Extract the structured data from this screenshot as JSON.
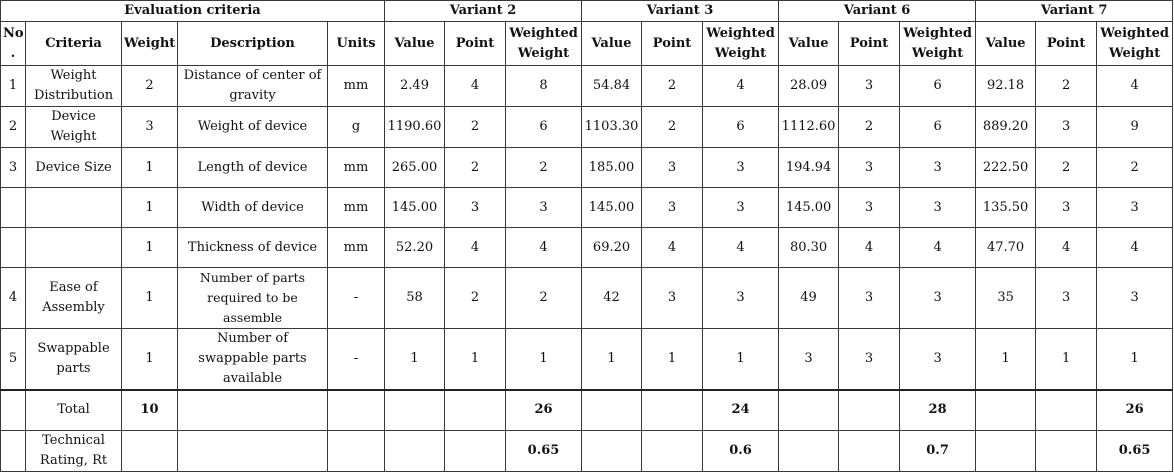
{
  "header": {
    "evaluation_criteria": "Evaluation criteria",
    "variants": [
      "Variant 2",
      "Variant 3",
      "Variant 6",
      "Variant 7"
    ]
  },
  "columns": {
    "no": "No .",
    "criteria": "Criteria",
    "weight": "Weight",
    "description": "Description",
    "units": "Units",
    "value": "Value",
    "point": "Point",
    "weighted_weight": "Weighted Weight"
  },
  "rows": [
    {
      "no": "1",
      "criteria": "Weight Distribution",
      "weight": "2",
      "description": "Distance of center of gravity",
      "units": "mm",
      "v": [
        [
          "2.49",
          "4",
          "8"
        ],
        [
          "54.84",
          "2",
          "4"
        ],
        [
          "28.09",
          "3",
          "6"
        ],
        [
          "92.18",
          "2",
          "4"
        ]
      ]
    },
    {
      "no": "2",
      "criteria": "Device Weight",
      "weight": "3",
      "description": "Weight of device",
      "units": "g",
      "v": [
        [
          "1190.60",
          "2",
          "6"
        ],
        [
          "1103.30",
          "2",
          "6"
        ],
        [
          "1112.60",
          "2",
          "6"
        ],
        [
          "889.20",
          "3",
          "9"
        ]
      ]
    },
    {
      "no": "3",
      "criteria": "Device Size",
      "weight": "1",
      "description": "Length of device",
      "units": "mm",
      "v": [
        [
          "265.00",
          "2",
          "2"
        ],
        [
          "185.00",
          "3",
          "3"
        ],
        [
          "194.94",
          "3",
          "3"
        ],
        [
          "222.50",
          "2",
          "2"
        ]
      ]
    },
    {
      "no": "",
      "criteria": "",
      "weight": "1",
      "description": "Width of device",
      "units": "mm",
      "v": [
        [
          "145.00",
          "3",
          "3"
        ],
        [
          "145.00",
          "3",
          "3"
        ],
        [
          "145.00",
          "3",
          "3"
        ],
        [
          "135.50",
          "3",
          "3"
        ]
      ]
    },
    {
      "no": "",
      "criteria": "",
      "weight": "1",
      "description": "Thickness of device",
      "units": "mm",
      "v": [
        [
          "52.20",
          "4",
          "4"
        ],
        [
          "69.20",
          "4",
          "4"
        ],
        [
          "80.30",
          "4",
          "4"
        ],
        [
          "47.70",
          "4",
          "4"
        ]
      ]
    },
    {
      "no": "4",
      "criteria": "Ease of Assembly",
      "weight": "1",
      "description": "Number of parts required to be assemble",
      "units": "-",
      "v": [
        [
          "58",
          "2",
          "2"
        ],
        [
          "42",
          "3",
          "3"
        ],
        [
          "49",
          "3",
          "3"
        ],
        [
          "35",
          "3",
          "3"
        ]
      ]
    },
    {
      "no": "5",
      "criteria": "Swappable parts",
      "weight": "1",
      "description": "Number of swappable parts available",
      "units": "-",
      "v": [
        [
          "1",
          "1",
          "1"
        ],
        [
          "1",
          "1",
          "1"
        ],
        [
          "3",
          "3",
          "3"
        ],
        [
          "1",
          "1",
          "1"
        ]
      ]
    }
  ],
  "total": {
    "label": "Total",
    "weight": "10",
    "weighted": [
      "26",
      "24",
      "28",
      "26"
    ]
  },
  "rating": {
    "label": "Technical Rating, Rt",
    "values": [
      "0.65",
      "0.6",
      "0.7",
      "0.65"
    ]
  }
}
